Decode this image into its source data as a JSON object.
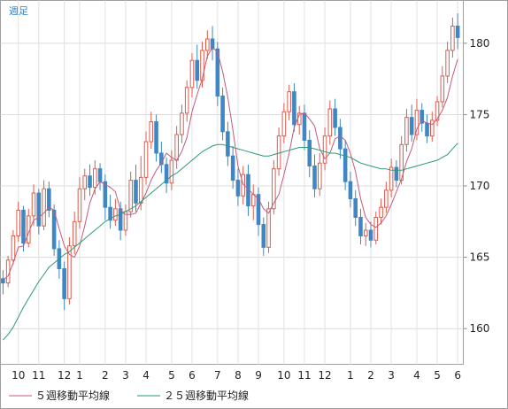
{
  "chart_data": {
    "type": "candlestick",
    "period_label": "週足",
    "ylim": [
      157.5,
      183
    ],
    "yticks": [
      160,
      165,
      170,
      175,
      180
    ],
    "x_tick_labels": [
      {
        "label": "10",
        "index": 3
      },
      {
        "label": "11",
        "index": 7
      },
      {
        "label": "12",
        "index": 12
      },
      {
        "label": "1",
        "index": 15
      },
      {
        "label": "2",
        "index": 20
      },
      {
        "label": "3",
        "index": 24
      },
      {
        "label": "4",
        "index": 28
      },
      {
        "label": "5",
        "index": 33
      },
      {
        "label": "6",
        "index": 37
      },
      {
        "label": "7",
        "index": 42
      },
      {
        "label": "8",
        "index": 46
      },
      {
        "label": "9",
        "index": 50
      },
      {
        "label": "10",
        "index": 55
      },
      {
        "label": "11",
        "index": 59
      },
      {
        "label": "12",
        "index": 63
      },
      {
        "label": "1",
        "index": 68
      },
      {
        "label": "2",
        "index": 72
      },
      {
        "label": "3",
        "index": 76
      },
      {
        "label": "4",
        "index": 81
      },
      {
        "label": "5",
        "index": 85
      },
      {
        "label": "6",
        "index": 89
      }
    ],
    "candles": [
      [
        163.5,
        163.2,
        164.1,
        162.4
      ],
      [
        163.2,
        164.8,
        165.1,
        162.9
      ],
      [
        164.8,
        166.5,
        166.9,
        164.5
      ],
      [
        166.5,
        168.3,
        168.9,
        166.1
      ],
      [
        168.3,
        166.0,
        168.6,
        165.4
      ],
      [
        166.0,
        167.9,
        168.4,
        165.7
      ],
      [
        167.9,
        169.5,
        170.1,
        167.2
      ],
      [
        169.5,
        167.2,
        169.8,
        166.6
      ],
      [
        167.2,
        169.8,
        170.4,
        166.9
      ],
      [
        169.8,
        168.3,
        170.3,
        167.8
      ],
      [
        168.3,
        165.6,
        168.7,
        165.1
      ],
      [
        165.6,
        164.2,
        166.2,
        163.5
      ],
      [
        164.2,
        162.1,
        164.7,
        161.3
      ],
      [
        162.1,
        165.8,
        166.4,
        161.7
      ],
      [
        165.8,
        167.5,
        168.2,
        165.2
      ],
      [
        167.5,
        169.8,
        170.6,
        167.0
      ],
      [
        169.8,
        170.7,
        171.2,
        169.0
      ],
      [
        170.7,
        169.9,
        171.5,
        169.3
      ],
      [
        169.9,
        171.2,
        171.8,
        169.4
      ],
      [
        171.2,
        170.3,
        171.6,
        169.7
      ],
      [
        170.3,
        168.5,
        170.8,
        167.6
      ],
      [
        168.5,
        167.6,
        169.4,
        167.0
      ],
      [
        167.6,
        168.4,
        169.1,
        167.2
      ],
      [
        168.4,
        166.9,
        168.9,
        166.2
      ],
      [
        166.9,
        168.2,
        168.7,
        166.5
      ],
      [
        168.2,
        170.4,
        171.0,
        167.8
      ],
      [
        170.4,
        168.8,
        171.5,
        168.2
      ],
      [
        168.8,
        170.6,
        172.1,
        168.3
      ],
      [
        170.6,
        173.1,
        173.8,
        170.1
      ],
      [
        173.1,
        174.5,
        175.2,
        172.6
      ],
      [
        174.5,
        172.3,
        175.0,
        171.7
      ],
      [
        172.3,
        171.5,
        173.1,
        170.9
      ],
      [
        171.5,
        170.2,
        172.0,
        169.5
      ],
      [
        170.2,
        171.8,
        172.5,
        169.7
      ],
      [
        171.8,
        173.6,
        174.2,
        171.2
      ],
      [
        173.6,
        175.1,
        175.7,
        173.0
      ],
      [
        175.1,
        176.9,
        177.4,
        174.5
      ],
      [
        176.9,
        178.8,
        179.3,
        176.2
      ],
      [
        178.8,
        177.4,
        179.9,
        176.8
      ],
      [
        177.4,
        179.5,
        180.1,
        176.9
      ],
      [
        179.5,
        180.3,
        180.9,
        178.9
      ],
      [
        180.3,
        179.6,
        181.2,
        178.8
      ],
      [
        179.6,
        176.3,
        180.1,
        175.6
      ],
      [
        176.3,
        173.8,
        176.9,
        173.2
      ],
      [
        173.8,
        172.1,
        174.5,
        171.4
      ],
      [
        172.1,
        170.4,
        172.8,
        169.8
      ],
      [
        170.4,
        169.3,
        171.2,
        168.6
      ],
      [
        169.3,
        170.8,
        171.4,
        168.7
      ],
      [
        170.8,
        168.6,
        171.5,
        167.9
      ],
      [
        168.6,
        169.4,
        170.1,
        167.6
      ],
      [
        169.4,
        167.3,
        169.9,
        166.5
      ],
      [
        167.3,
        165.7,
        167.8,
        165.1
      ],
      [
        165.7,
        168.4,
        168.9,
        165.3
      ],
      [
        168.4,
        171.2,
        171.8,
        168.0
      ],
      [
        171.2,
        173.5,
        174.1,
        170.7
      ],
      [
        173.5,
        175.2,
        175.8,
        173.0
      ],
      [
        175.2,
        176.6,
        177.1,
        174.6
      ],
      [
        176.6,
        174.3,
        177.2,
        173.8
      ],
      [
        174.3,
        175.1,
        175.6,
        173.6
      ],
      [
        175.1,
        173.2,
        175.7,
        172.5
      ],
      [
        173.2,
        171.4,
        173.9,
        170.6
      ],
      [
        171.4,
        169.8,
        172.2,
        169.2
      ],
      [
        169.8,
        171.6,
        172.3,
        169.3
      ],
      [
        171.6,
        173.5,
        174.1,
        171.1
      ],
      [
        173.5,
        175.4,
        176.0,
        172.9
      ],
      [
        175.4,
        174.1,
        176.1,
        173.5
      ],
      [
        174.1,
        172.6,
        174.7,
        171.9
      ],
      [
        172.6,
        170.3,
        173.2,
        169.7
      ],
      [
        170.3,
        169.1,
        171.0,
        168.5
      ],
      [
        169.1,
        167.8,
        169.7,
        167.2
      ],
      [
        167.8,
        166.5,
        168.4,
        165.9
      ],
      [
        166.5,
        166.9,
        167.4,
        165.8
      ],
      [
        166.9,
        166.2,
        167.5,
        165.7
      ],
      [
        166.2,
        167.8,
        168.2,
        165.9
      ],
      [
        167.8,
        168.5,
        169.1,
        167.3
      ],
      [
        168.5,
        169.7,
        170.3,
        168.1
      ],
      [
        169.7,
        171.3,
        171.9,
        169.2
      ],
      [
        171.3,
        170.4,
        171.8,
        169.9
      ],
      [
        170.4,
        172.9,
        173.5,
        170.1
      ],
      [
        172.9,
        174.8,
        175.4,
        172.4
      ],
      [
        174.8,
        173.6,
        175.7,
        173.1
      ],
      [
        173.6,
        175.3,
        176.1,
        173.2
      ],
      [
        175.3,
        174.4,
        175.8,
        173.8
      ],
      [
        174.4,
        173.5,
        175.0,
        173.0
      ],
      [
        173.5,
        174.6,
        175.2,
        173.1
      ],
      [
        174.6,
        175.9,
        176.3,
        174.2
      ],
      [
        175.9,
        177.7,
        178.4,
        175.5
      ],
      [
        177.7,
        179.5,
        180.1,
        177.2
      ],
      [
        179.5,
        181.2,
        181.8,
        179.0
      ],
      [
        181.2,
        180.4,
        182.1,
        179.6
      ]
    ],
    "series": [
      {
        "name": "５週移動平均線",
        "color": "#c45a78",
        "values": [
          163.4,
          163.7,
          164.6,
          165.7,
          165.8,
          166.7,
          167.6,
          167.8,
          168.1,
          168.5,
          168.3,
          167.0,
          165.8,
          165.2,
          165.0,
          165.8,
          167.2,
          168.8,
          169.8,
          170.3,
          170.1,
          169.9,
          169.6,
          168.3,
          168.0,
          168.0,
          168.1,
          168.8,
          169.5,
          170.4,
          171.1,
          171.6,
          172.3,
          172.0,
          171.8,
          172.4,
          173.4,
          175.2,
          176.4,
          177.5,
          179.1,
          179.7,
          179.4,
          178.0,
          176.2,
          173.9,
          171.4,
          170.1,
          169.8,
          169.4,
          169.1,
          168.4,
          168.1,
          168.8,
          169.4,
          170.8,
          172.3,
          174.1,
          175.0,
          175.1,
          174.7,
          174.2,
          172.6,
          171.9,
          172.3,
          173.3,
          173.5,
          173.2,
          172.3,
          171.0,
          169.1,
          167.8,
          167.3,
          167.1,
          167.4,
          167.9,
          168.7,
          169.6,
          170.5,
          171.7,
          172.6,
          174.0,
          174.6,
          174.4,
          174.3,
          174.7,
          175.3,
          176.2,
          177.7,
          178.9
        ]
      },
      {
        "name": "２５週移動平均線",
        "color": "#2a9a78",
        "values": [
          159.2,
          159.6,
          160.1,
          160.8,
          161.5,
          162.1,
          162.7,
          163.3,
          163.8,
          164.3,
          164.6,
          164.9,
          165.2,
          165.4,
          165.7,
          166.0,
          166.3,
          166.6,
          166.9,
          167.2,
          167.5,
          167.7,
          167.9,
          168.0,
          168.2,
          168.4,
          168.6,
          168.9,
          169.2,
          169.5,
          169.8,
          170.1,
          170.4,
          170.7,
          170.9,
          171.2,
          171.5,
          171.8,
          172.1,
          172.4,
          172.6,
          172.8,
          172.9,
          172.9,
          172.8,
          172.7,
          172.6,
          172.5,
          172.4,
          172.3,
          172.2,
          172.1,
          172.1,
          172.2,
          172.3,
          172.4,
          172.5,
          172.6,
          172.7,
          172.7,
          172.7,
          172.6,
          172.5,
          172.4,
          172.3,
          172.3,
          172.2,
          172.1,
          172.0,
          171.8,
          171.6,
          171.5,
          171.4,
          171.3,
          171.2,
          171.2,
          171.1,
          171.1,
          171.1,
          171.2,
          171.3,
          171.4,
          171.5,
          171.6,
          171.7,
          171.8,
          172.0,
          172.2,
          172.6,
          173.0
        ]
      }
    ],
    "up_color": "#e05a4a",
    "down_color": "#3f86c4",
    "grid": true,
    "legend_position": "bottom-left"
  }
}
